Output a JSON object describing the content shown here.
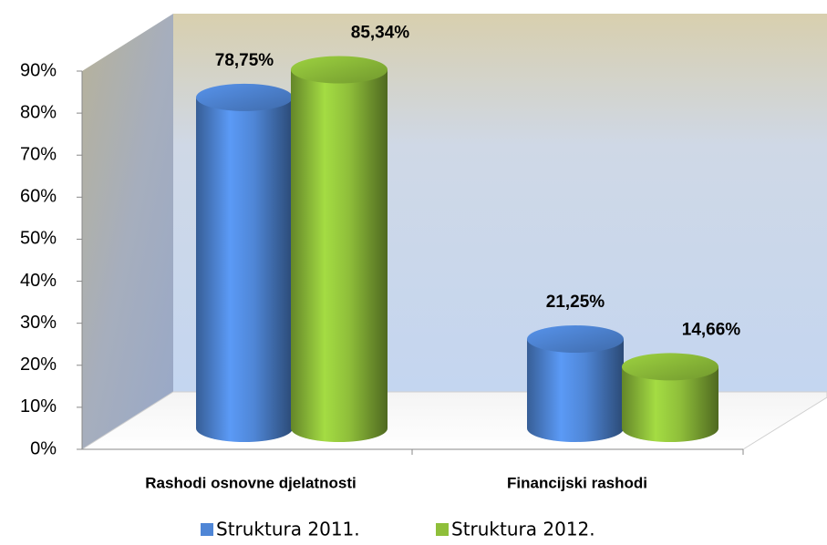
{
  "chart_data": {
    "type": "bar3d",
    "categories": [
      "Rashodi osnovne djelatnosti",
      "Financijski rashodi"
    ],
    "series": [
      {
        "name": "Struktura 2011.",
        "color": "#4f86d6",
        "values": [
          78.75,
          21.25
        ],
        "value_labels": [
          "78,75%",
          "21,25%"
        ]
      },
      {
        "name": "Struktura 2012.",
        "color": "#8fbf3a",
        "values": [
          85.34,
          14.66
        ],
        "value_labels": [
          "85,34%",
          "14,66%"
        ]
      }
    ],
    "ylim": [
      0,
      90
    ],
    "yticks": [
      {
        "value": 0,
        "label": "0%"
      },
      {
        "value": 10,
        "label": "10%"
      },
      {
        "value": 20,
        "label": "20%"
      },
      {
        "value": 30,
        "label": "30%"
      },
      {
        "value": 40,
        "label": "40%"
      },
      {
        "value": 50,
        "label": "50%"
      },
      {
        "value": 60,
        "label": "60%"
      },
      {
        "value": 70,
        "label": "70%"
      },
      {
        "value": 80,
        "label": "80%"
      },
      {
        "value": 90,
        "label": "90%"
      }
    ],
    "legend": "bottom"
  }
}
